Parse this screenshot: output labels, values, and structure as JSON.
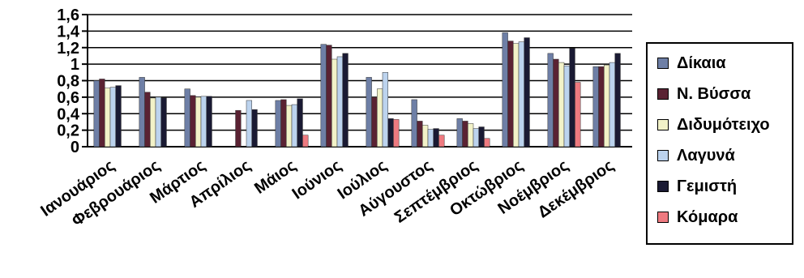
{
  "chart_data": {
    "type": "bar",
    "categories": [
      "Ιανουάριος",
      "Φεβρουάριος",
      "Μάρτιος",
      "Απρίλιος",
      "Μάιος",
      "Ιούνιος",
      "Ιούλιος",
      "Αύγουστος",
      "Σεπτέμβριος",
      "Οκτώβριος",
      "Νοέμβριος",
      "Δεκέμβριος"
    ],
    "series": [
      {
        "name": "Δίκαια",
        "color": "#6e7fa6",
        "values": [
          0.8,
          0.84,
          0.7,
          null,
          0.56,
          1.24,
          0.84,
          0.57,
          0.34,
          1.38,
          1.13,
          0.97
        ]
      },
      {
        "name": "Ν. Βύσσα",
        "color": "#5a2233",
        "values": [
          0.82,
          0.66,
          0.62,
          0.44,
          0.57,
          1.23,
          0.6,
          0.31,
          0.31,
          1.28,
          1.06,
          0.97
        ]
      },
      {
        "name": "Διδυμότειχο",
        "color": "#f2f2c8",
        "values": [
          0.71,
          0.59,
          0.6,
          null,
          0.5,
          1.06,
          0.7,
          0.26,
          0.28,
          1.25,
          1.02,
          0.99
        ]
      },
      {
        "name": "Λαγυνά",
        "color": "#bcd3ee",
        "values": [
          0.72,
          0.6,
          0.61,
          0.56,
          0.51,
          1.09,
          0.9,
          0.21,
          0.22,
          1.27,
          0.98,
          1.02
        ]
      },
      {
        "name": "Γεμιστή",
        "color": "#1a1a33",
        "values": [
          0.74,
          0.59,
          0.61,
          0.45,
          0.58,
          1.13,
          0.34,
          0.22,
          0.24,
          1.32,
          1.19,
          1.13
        ]
      },
      {
        "name": "Κόμαρα",
        "color": "#ee7a80",
        "values": [
          null,
          null,
          null,
          null,
          0.14,
          null,
          0.33,
          0.14,
          0.1,
          null,
          0.78,
          null
        ]
      }
    ],
    "ylim": [
      0,
      1.6
    ],
    "yticks": [
      "0",
      "0,2",
      "0,4",
      "0,6",
      "0,8",
      "1",
      "1,2",
      "1,4",
      "1,6"
    ],
    "grid": true,
    "legend_position": "right",
    "title": "",
    "xlabel": "",
    "ylabel": ""
  }
}
